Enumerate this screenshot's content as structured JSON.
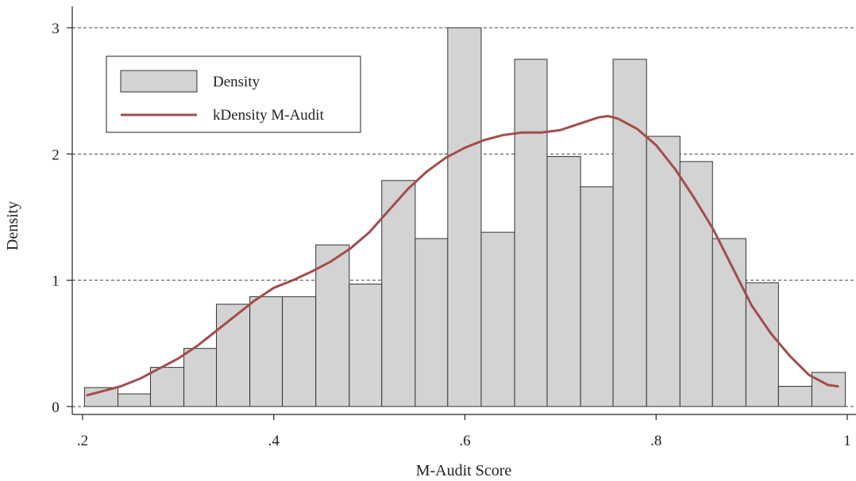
{
  "chart_data": {
    "type": "bar",
    "title": "",
    "xlabel": "M-Audit Score",
    "ylabel": "Density",
    "xlim": [
      0.2,
      1.0
    ],
    "ylim": [
      0,
      3.0
    ],
    "x_ticks": [
      {
        "value": 0.2,
        "label": ".2"
      },
      {
        "value": 0.4,
        "label": ".4"
      },
      {
        "value": 0.6,
        "label": ".6"
      },
      {
        "value": 0.8,
        "label": ".8"
      },
      {
        "value": 1.0,
        "label": "1"
      }
    ],
    "y_ticks": [
      {
        "value": 0,
        "label": "0"
      },
      {
        "value": 1,
        "label": "1"
      },
      {
        "value": 2,
        "label": "2"
      },
      {
        "value": 3,
        "label": "3"
      }
    ],
    "grid": "horizontal dashed",
    "legend_position": "top-left",
    "series": [
      {
        "name": "Density",
        "kind": "histogram",
        "color": "#d3d3d3",
        "edge_color": "#333333",
        "bins": [
          {
            "x0": 0.202,
            "x1": 0.237,
            "value": 0.15
          },
          {
            "x0": 0.237,
            "x1": 0.271,
            "value": 0.1
          },
          {
            "x0": 0.271,
            "x1": 0.306,
            "value": 0.31
          },
          {
            "x0": 0.306,
            "x1": 0.34,
            "value": 0.46
          },
          {
            "x0": 0.34,
            "x1": 0.375,
            "value": 0.81
          },
          {
            "x0": 0.375,
            "x1": 0.409,
            "value": 0.87
          },
          {
            "x0": 0.409,
            "x1": 0.444,
            "value": 0.87
          },
          {
            "x0": 0.444,
            "x1": 0.479,
            "value": 1.28
          },
          {
            "x0": 0.479,
            "x1": 0.513,
            "value": 0.97
          },
          {
            "x0": 0.513,
            "x1": 0.548,
            "value": 1.79
          },
          {
            "x0": 0.548,
            "x1": 0.582,
            "value": 1.33
          },
          {
            "x0": 0.582,
            "x1": 0.617,
            "value": 3.0
          },
          {
            "x0": 0.617,
            "x1": 0.652,
            "value": 1.38
          },
          {
            "x0": 0.652,
            "x1": 0.686,
            "value": 2.75
          },
          {
            "x0": 0.686,
            "x1": 0.721,
            "value": 1.98
          },
          {
            "x0": 0.721,
            "x1": 0.755,
            "value": 1.74
          },
          {
            "x0": 0.755,
            "x1": 0.79,
            "value": 2.75
          },
          {
            "x0": 0.79,
            "x1": 0.825,
            "value": 2.14
          },
          {
            "x0": 0.825,
            "x1": 0.859,
            "value": 1.94
          },
          {
            "x0": 0.859,
            "x1": 0.894,
            "value": 1.33
          },
          {
            "x0": 0.894,
            "x1": 0.928,
            "value": 0.98
          },
          {
            "x0": 0.928,
            "x1": 0.963,
            "value": 0.16
          },
          {
            "x0": 0.963,
            "x1": 0.998,
            "value": 0.27
          }
        ]
      },
      {
        "name": "kDensity M-Audit",
        "kind": "line",
        "color": "#a24d4d",
        "x": [
          0.205,
          0.22,
          0.24,
          0.26,
          0.28,
          0.3,
          0.32,
          0.34,
          0.36,
          0.38,
          0.4,
          0.42,
          0.44,
          0.46,
          0.48,
          0.5,
          0.52,
          0.54,
          0.56,
          0.58,
          0.6,
          0.62,
          0.64,
          0.66,
          0.68,
          0.7,
          0.72,
          0.74,
          0.75,
          0.76,
          0.78,
          0.8,
          0.82,
          0.84,
          0.86,
          0.88,
          0.9,
          0.92,
          0.94,
          0.96,
          0.98,
          0.99
        ],
        "y": [
          0.09,
          0.12,
          0.16,
          0.22,
          0.3,
          0.38,
          0.48,
          0.6,
          0.72,
          0.84,
          0.94,
          1.0,
          1.07,
          1.15,
          1.25,
          1.38,
          1.55,
          1.72,
          1.86,
          1.97,
          2.05,
          2.11,
          2.15,
          2.17,
          2.17,
          2.19,
          2.24,
          2.29,
          2.3,
          2.28,
          2.2,
          2.07,
          1.88,
          1.65,
          1.4,
          1.1,
          0.8,
          0.58,
          0.4,
          0.25,
          0.17,
          0.16
        ]
      }
    ]
  }
}
